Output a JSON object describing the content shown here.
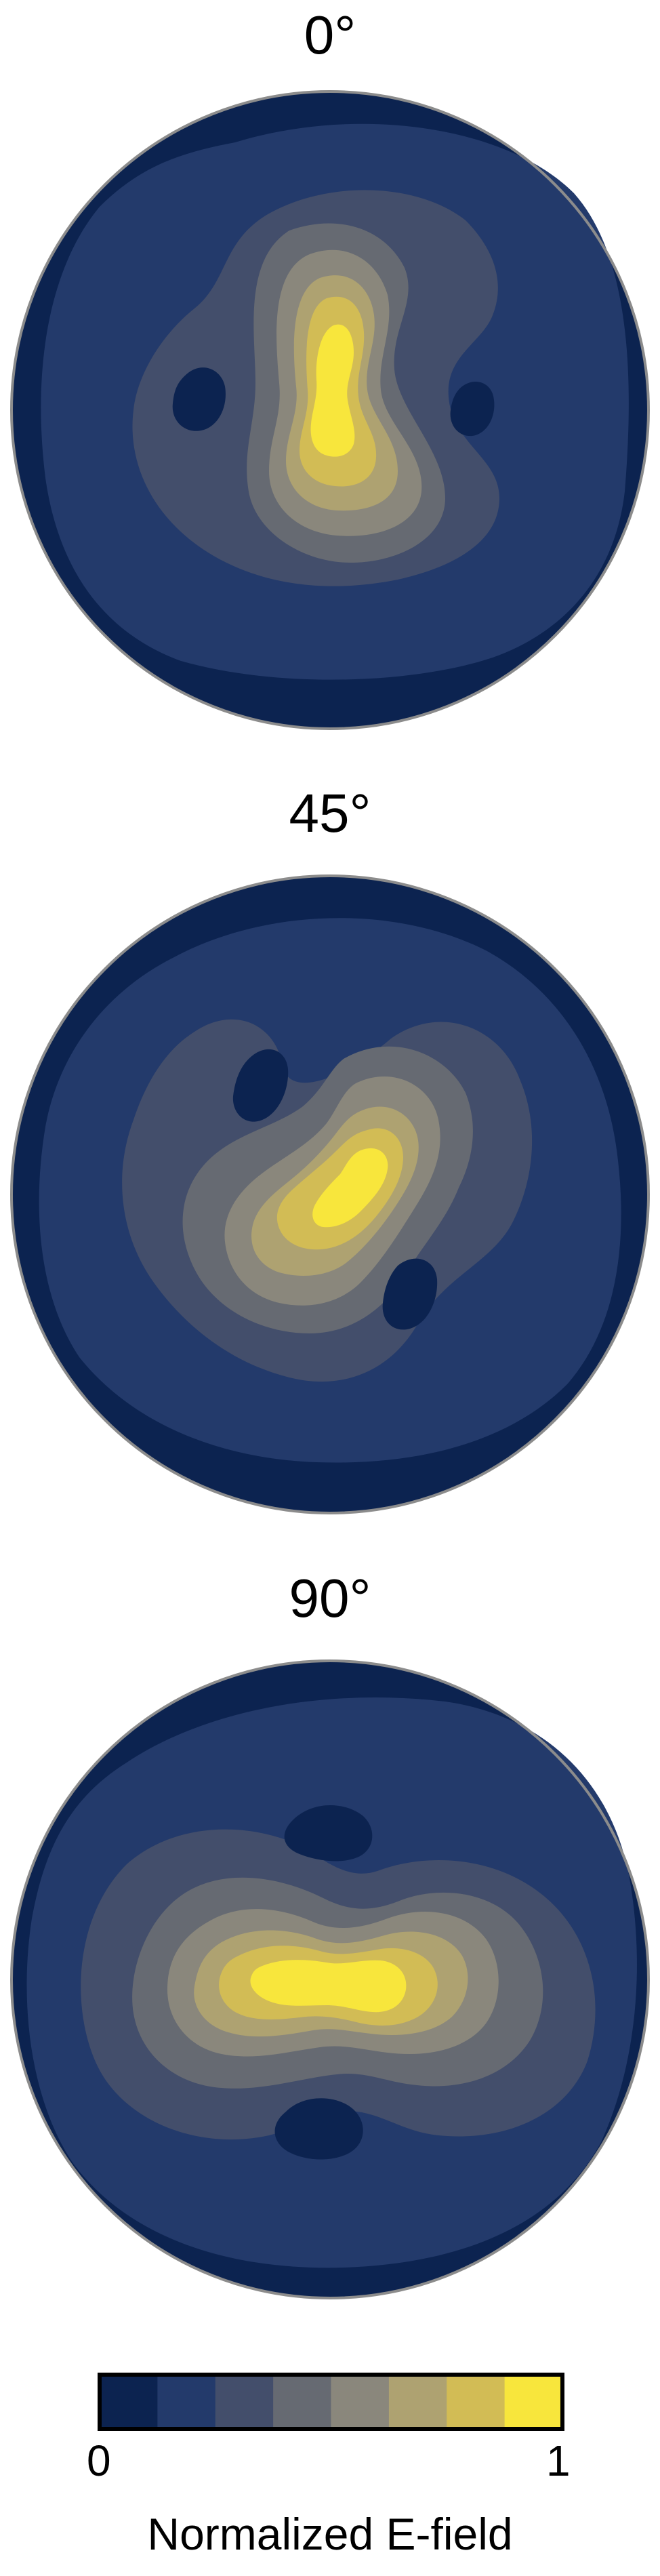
{
  "chart_data": {
    "type": "heatmap",
    "colormap_levels": [
      "#0c2350",
      "#233a6b",
      "#434e6b",
      "#666a72",
      "#8a877c",
      "#aea271",
      "#d2bc55",
      "#f8e63c"
    ],
    "colorbar": {
      "min_label": "0",
      "max_label": "1",
      "label": "Normalized E-field",
      "range": [
        0,
        1
      ]
    },
    "panels": [
      {
        "title": "0°",
        "angle_deg": 0
      },
      {
        "title": "45°",
        "angle_deg": 45
      },
      {
        "title": "90°",
        "angle_deg": 90
      }
    ]
  }
}
